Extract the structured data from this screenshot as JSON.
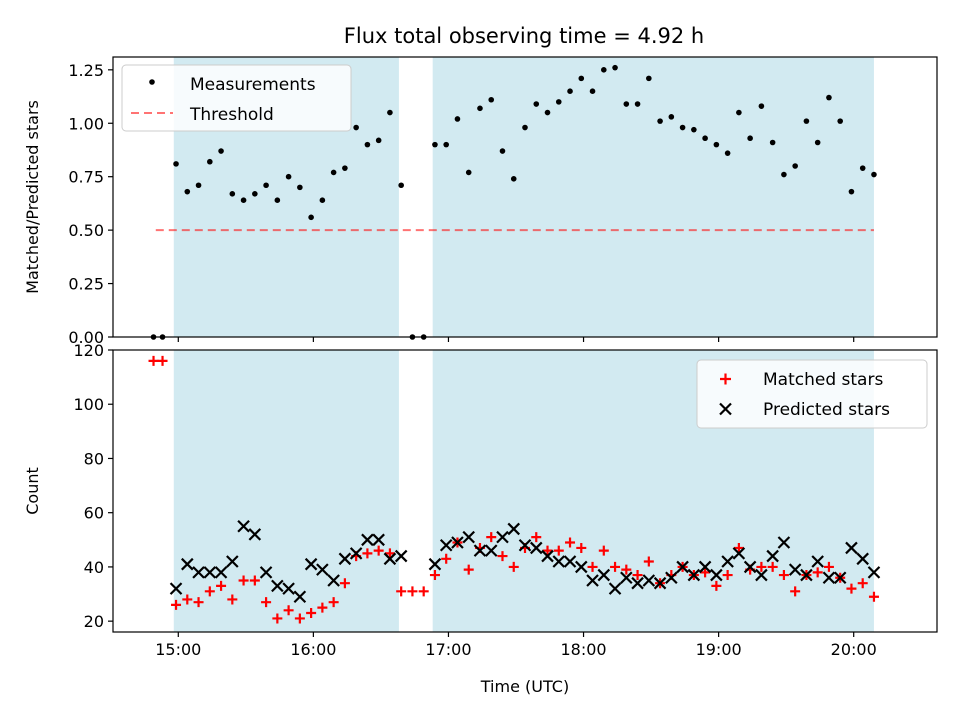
{
  "title": "Flux total observing time = 4.92 h",
  "chart_data": [
    {
      "type": "scatter",
      "panel": "top",
      "title": "Flux total observing time = 4.92 h",
      "xlabel": "",
      "ylabel": "Matched/Predicted stars",
      "xlim": [
        "14:31",
        "20:37"
      ],
      "ylim": [
        0,
        1.31
      ],
      "x_ticks": [
        "15:00",
        "16:00",
        "17:00",
        "18:00",
        "19:00",
        "20:00"
      ],
      "y_ticks": [
        "0.00",
        "0.25",
        "0.50",
        "0.75",
        "1.00",
        "1.25"
      ],
      "legend": {
        "placement": "top-left",
        "entries": [
          "Measurements",
          "Threshold"
        ]
      },
      "shaded_intervals": [
        [
          "14:58",
          "16:38"
        ],
        [
          "16:53",
          "20:09"
        ]
      ],
      "shade_color": "#add8e6",
      "threshold": {
        "name": "Threshold",
        "y": 0.5,
        "x_range": [
          "14:50",
          "20:09"
        ],
        "color": "#ff0000"
      },
      "series": [
        {
          "name": "Measurements",
          "color": "#000000",
          "x": [
            "14:49",
            "14:53",
            "14:59",
            "15:04",
            "15:09",
            "15:14",
            "15:19",
            "15:24",
            "15:29",
            "15:34",
            "15:39",
            "15:44",
            "15:49",
            "15:54",
            "15:59",
            "16:04",
            "16:09",
            "16:14",
            "16:19",
            "16:24",
            "16:29",
            "16:34",
            "16:39",
            "16:44",
            "16:49",
            "16:54",
            "16:59",
            "17:04",
            "17:09",
            "17:14",
            "17:19",
            "17:24",
            "17:29",
            "17:34",
            "17:39",
            "17:44",
            "17:49",
            "17:54",
            "17:59",
            "18:04",
            "18:09",
            "18:14",
            "18:19",
            "18:24",
            "18:29",
            "18:34",
            "18:39",
            "18:44",
            "18:49",
            "18:54",
            "18:59",
            "19:04",
            "19:09",
            "19:14",
            "19:19",
            "19:24",
            "19:29",
            "19:34",
            "19:39",
            "19:44",
            "19:49",
            "19:54",
            "19:59",
            "20:04",
            "20:09"
          ],
          "y": [
            0.0,
            0.0,
            0.81,
            0.68,
            0.71,
            0.82,
            0.87,
            0.67,
            0.64,
            0.67,
            0.71,
            0.64,
            0.75,
            0.7,
            0.56,
            0.64,
            0.77,
            0.79,
            0.98,
            0.9,
            0.92,
            1.05,
            0.71,
            0.0,
            0.0,
            0.9,
            0.9,
            1.02,
            0.77,
            1.07,
            1.11,
            0.87,
            0.74,
            0.98,
            1.09,
            1.05,
            1.1,
            1.15,
            1.21,
            1.15,
            1.25,
            1.26,
            1.09,
            1.09,
            1.21,
            1.01,
            1.03,
            0.98,
            0.97,
            0.93,
            0.9,
            0.86,
            1.05,
            0.93,
            1.08,
            0.91,
            0.76,
            0.8,
            1.01,
            0.91,
            1.12,
            1.01,
            0.68,
            0.79,
            0.76
          ]
        }
      ]
    },
    {
      "type": "scatter",
      "panel": "bottom",
      "xlabel": "Time (UTC)",
      "ylabel": "Count",
      "xlim": [
        "14:31",
        "20:37"
      ],
      "ylim": [
        16,
        120
      ],
      "x_ticks": [
        "15:00",
        "16:00",
        "17:00",
        "18:00",
        "19:00",
        "20:00"
      ],
      "y_ticks": [
        "20",
        "40",
        "60",
        "80",
        "100",
        "120"
      ],
      "legend": {
        "placement": "top-right",
        "entries": [
          "Matched stars",
          "Predicted stars"
        ]
      },
      "shaded_intervals": [
        [
          "14:58",
          "16:38"
        ],
        [
          "16:53",
          "20:09"
        ]
      ],
      "shade_color": "#add8e6",
      "series": [
        {
          "name": "Matched stars",
          "marker": "plus",
          "color": "#ff0000",
          "x": [
            "14:49",
            "14:53",
            "14:59",
            "15:04",
            "15:09",
            "15:14",
            "15:19",
            "15:24",
            "15:29",
            "15:34",
            "15:39",
            "15:44",
            "15:49",
            "15:54",
            "15:59",
            "16:04",
            "16:09",
            "16:14",
            "16:19",
            "16:24",
            "16:29",
            "16:34",
            "16:39",
            "16:44",
            "16:49",
            "16:54",
            "16:59",
            "17:04",
            "17:09",
            "17:14",
            "17:19",
            "17:24",
            "17:29",
            "17:34",
            "17:39",
            "17:44",
            "17:49",
            "17:54",
            "17:59",
            "18:04",
            "18:09",
            "18:14",
            "18:19",
            "18:24",
            "18:29",
            "18:34",
            "18:39",
            "18:44",
            "18:49",
            "18:54",
            "18:59",
            "19:04",
            "19:09",
            "19:14",
            "19:19",
            "19:24",
            "19:29",
            "19:34",
            "19:39",
            "19:44",
            "19:49",
            "19:54",
            "19:59",
            "20:04",
            "20:09"
          ],
          "y": [
            116,
            116,
            26,
            28,
            27,
            31,
            33,
            28,
            35,
            35,
            27,
            21,
            24,
            21,
            23,
            25,
            27,
            34,
            44,
            45,
            46,
            45,
            31,
            31,
            31,
            37,
            43,
            49,
            39,
            47,
            51,
            44,
            40,
            47,
            51,
            46,
            46,
            49,
            47,
            40,
            46,
            40,
            39,
            37,
            42,
            34,
            37,
            40,
            37,
            38,
            33,
            37,
            47,
            39,
            40,
            40,
            37,
            31,
            37,
            38,
            40,
            36,
            32,
            34,
            29
          ]
        },
        {
          "name": "Predicted stars",
          "marker": "x",
          "color": "#000000",
          "x": [
            "14:59",
            "15:04",
            "15:09",
            "15:14",
            "15:19",
            "15:24",
            "15:29",
            "15:34",
            "15:39",
            "15:44",
            "15:49",
            "15:54",
            "15:59",
            "16:04",
            "16:09",
            "16:14",
            "16:19",
            "16:24",
            "16:29",
            "16:34",
            "16:39",
            "16:54",
            "16:59",
            "17:04",
            "17:09",
            "17:14",
            "17:19",
            "17:24",
            "17:29",
            "17:34",
            "17:39",
            "17:44",
            "17:49",
            "17:54",
            "17:59",
            "18:04",
            "18:09",
            "18:14",
            "18:19",
            "18:24",
            "18:29",
            "18:34",
            "18:39",
            "18:44",
            "18:49",
            "18:54",
            "18:59",
            "19:04",
            "19:09",
            "19:14",
            "19:19",
            "19:24",
            "19:29",
            "19:34",
            "19:39",
            "19:44",
            "19:49",
            "19:54",
            "19:59",
            "20:04",
            "20:09"
          ],
          "y": [
            32,
            41,
            38,
            38,
            38,
            42,
            55,
            52,
            38,
            33,
            32,
            29,
            41,
            39,
            35,
            43,
            45,
            50,
            50,
            43,
            44,
            41,
            48,
            49,
            51,
            46,
            46,
            51,
            54,
            48,
            47,
            44,
            42,
            42,
            40,
            35,
            37,
            32,
            36,
            34,
            35,
            34,
            36,
            40,
            37,
            40,
            37,
            42,
            45,
            40,
            37,
            44,
            49,
            39,
            37,
            42,
            36,
            36,
            47,
            43,
            38
          ]
        }
      ]
    }
  ]
}
